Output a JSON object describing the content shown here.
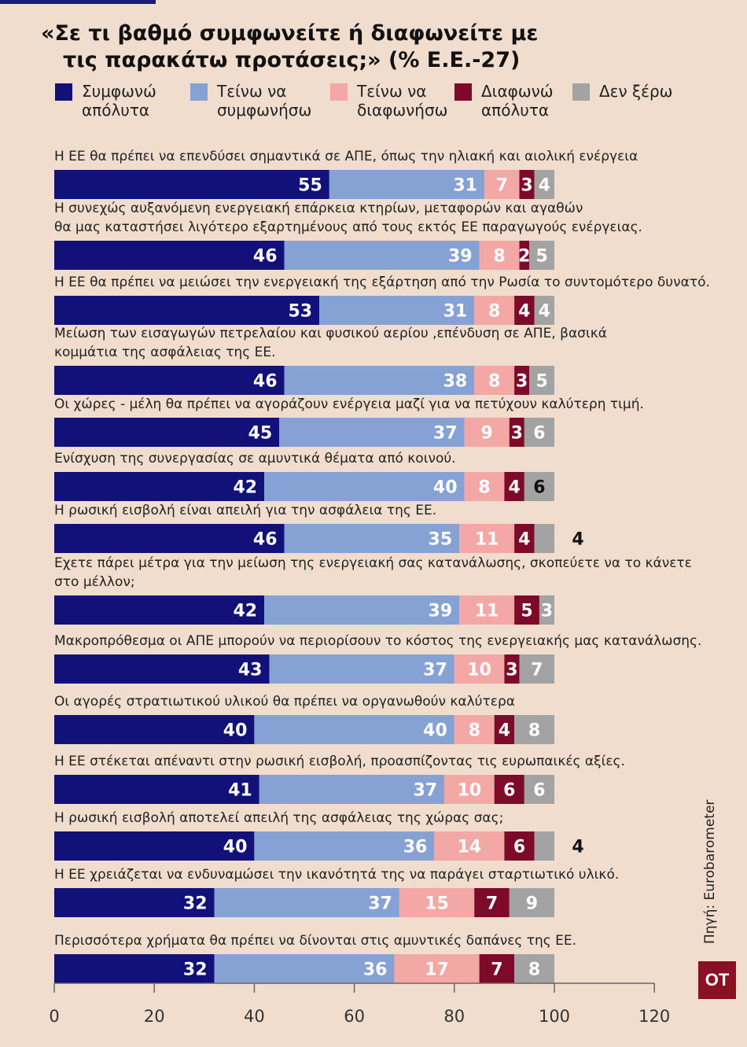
{
  "title": {
    "line1": "«Σε  τι βαθμό συμφωνείτε ή διαφωνείτε με",
    "line2": "τις παρακάτω προτάσεις;» (% Ε.Ε.-27)"
  },
  "source": "Πηγή: Eurobarometer",
  "logo": "ΟΤ",
  "colors": {
    "strongly_agree": "#12117a",
    "tend_agree": "#86a2d4",
    "tend_disagree": "#f4a8a5",
    "strongly_disagree": "#7e0a2a",
    "dont_know": "#a3a3a3",
    "background": "#f0ddcd"
  },
  "chart_data": {
    "type": "bar",
    "orientation": "horizontal",
    "stacked": true,
    "title": "«Σε  τι βαθμό συμφωνείτε ή διαφωνείτε με τις παρακάτω προτάσεις;» (% Ε.Ε.-27)",
    "xlim": [
      0,
      120
    ],
    "xticks": [
      0,
      20,
      40,
      60,
      80,
      100,
      120
    ],
    "grid": false,
    "legend_position": "top",
    "series": [
      {
        "name": "Συμφωνώ\nαπόλυτα",
        "color": "#12117a",
        "label_color": "#ffffff"
      },
      {
        "name": "Τείνω να\nσυμφωνήσω",
        "color": "#86a2d4",
        "label_color": "#ffffff"
      },
      {
        "name": "Τείνω να\nδιαφωνήσω",
        "color": "#f4a8a5",
        "label_color": "#ffffff"
      },
      {
        "name": "Διαφωνώ\nαπόλυτα",
        "color": "#7e0a2a",
        "label_color": "#ffffff"
      },
      {
        "name": "Δεν ξέρω",
        "color": "#a3a3a3",
        "label_color": "#ffffff"
      }
    ],
    "rows": [
      {
        "label": [
          "Η ΕΕ θα πρέπει να επενδύσει σημαντικά σε ΑΠΕ, όπως την ηλιακή και αιολική ενέργεια"
        ],
        "values": [
          55,
          31,
          7,
          3,
          4
        ],
        "dk_outside": false
      },
      {
        "label": [
          "Η συνεχώς αυξανόμενη ενεργειακή επάρκεια κτηρίων, μεταφορών και αγαθών",
          "θα μας καταστήσει λιγότερο εξαρτημένους από τους εκτός ΕΕ παραγωγούς ενέργειας."
        ],
        "values": [
          46,
          39,
          8,
          2,
          5
        ],
        "dk_outside": false
      },
      {
        "label": [
          "Η ΕΕ θα πρέπει να μειώσει την ενεργειακή της εξάρτηση από την Ρωσία το συντομότερο δυνατό."
        ],
        "values": [
          53,
          31,
          8,
          4,
          4
        ],
        "dk_outside": false
      },
      {
        "label": [
          "Μείωση των εισαγωγών πετρελαίου και φυσικού αερίου ,επένδυση σε ΑΠΕ, βασικά",
          "κομμάτια της ασφάλειας της ΕΕ."
        ],
        "values": [
          46,
          38,
          8,
          3,
          5
        ],
        "dk_outside": false
      },
      {
        "label": [
          "Οι χώρες - μέλη θα πρέπει να αγοράζουν ενέργεια μαζί για να πετύχουν καλύτερη τιμή."
        ],
        "values": [
          45,
          37,
          9,
          3,
          6
        ],
        "dk_outside": false
      },
      {
        "label": [
          "Ενίσχυση της συνεργασίας σε αμυντικά θέματα από κοινού."
        ],
        "values": [
          42,
          40,
          8,
          4,
          6
        ],
        "dk_outside": false,
        "dk_dark": true
      },
      {
        "label": [
          "Η ρωσική εισβολή είναι απειλή για την ασφάλεια της ΕΕ."
        ],
        "values": [
          46,
          35,
          11,
          4,
          4
        ],
        "dk_outside": true
      },
      {
        "label": [
          "Εχετε πάρει μέτρα για την μείωση της ενεργειακή σας κατανάλωσης, σκοπεύετε να το κάνετε",
          "στο μέλλον;"
        ],
        "values": [
          42,
          39,
          11,
          5,
          3
        ],
        "dk_outside": false
      },
      {
        "label": [
          "Μακροπρόθεσμα οι ΑΠΕ μπορούν να περιορίσουν το κόστος της ενεργειακής μας κατανάλωσης."
        ],
        "values": [
          43,
          37,
          10,
          3,
          7
        ],
        "dk_outside": false
      },
      {
        "label": [
          "Οι αγορές στρατιωτικού υλικού θα πρέπει να οργανωθούν καλύτερα"
        ],
        "values": [
          40,
          40,
          8,
          4,
          8
        ],
        "dk_outside": false
      },
      {
        "label": [
          "Η ΕΕ στέκεται απέναντι στην ρωσική εισβολή, προασπίζοντας τις ευρωπαικές αξίες."
        ],
        "values": [
          41,
          37,
          10,
          6,
          6
        ],
        "dk_outside": false
      },
      {
        "label": [
          "Η ρωσική εισβολή αποτελεί απειλή της ασφάλειας της χώρας σας;"
        ],
        "values": [
          40,
          36,
          14,
          6,
          4
        ],
        "dk_outside": true
      },
      {
        "label": [
          "Η ΕΕ χρειάζεται να ενδυναμώσει την ικανότητά της να παράγει σταρτιωτικό υλικό."
        ],
        "values": [
          32,
          37,
          15,
          7,
          9
        ],
        "dk_outside": false
      },
      {
        "label": [
          "Περισσότερα χρήματα θα πρέπει να δίνονται στις αμυντικές δαπάνες της ΕΕ."
        ],
        "values": [
          32,
          36,
          17,
          7,
          8
        ],
        "dk_outside": false
      }
    ]
  }
}
